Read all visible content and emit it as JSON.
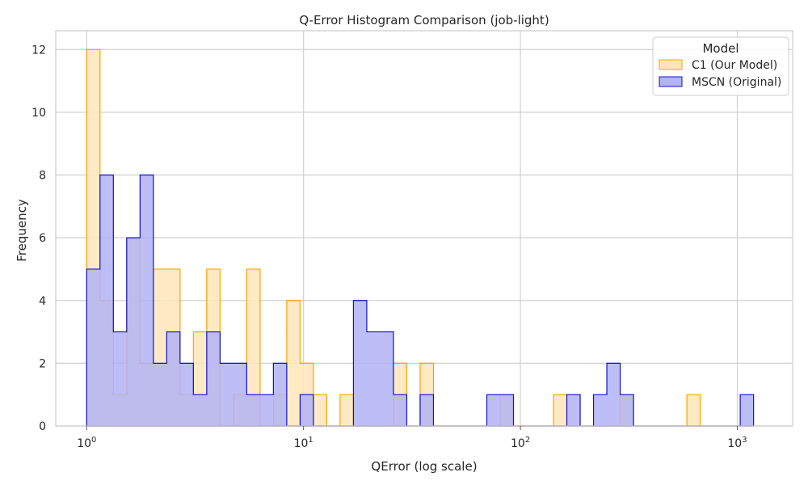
{
  "chart_data": {
    "type": "histogram",
    "title": "Q-Error Histogram Comparison (job-light)",
    "xlabel": "QError (log scale)",
    "ylabel": "Frequency",
    "x_scale": "log",
    "xlim": [
      0.72,
      1800
    ],
    "ylim": [
      0,
      12.6
    ],
    "x_ticks": [
      {
        "value": 1,
        "base": "10",
        "exp": "0"
      },
      {
        "value": 10,
        "base": "10",
        "exp": "1"
      },
      {
        "value": 100,
        "base": "10",
        "exp": "2"
      },
      {
        "value": 1000,
        "base": "10",
        "exp": "3"
      }
    ],
    "y_ticks": [
      0,
      2,
      4,
      6,
      8,
      10,
      12
    ],
    "grid": true,
    "bin_edges_log10": [
      0.0,
      0.0615,
      0.123,
      0.1845,
      0.246,
      0.3075,
      0.369,
      0.4305,
      0.492,
      0.5535,
      0.615,
      0.6765,
      0.738,
      0.7995,
      0.861,
      0.9225,
      0.984,
      1.0455,
      1.107,
      1.1685,
      1.23,
      1.2915,
      1.353,
      1.4145,
      1.476,
      1.5375,
      1.599,
      1.6605,
      1.722,
      1.7835,
      1.845,
      1.9065,
      1.968,
      2.0295,
      2.091,
      2.1525,
      2.214,
      2.2755,
      2.337,
      2.3985,
      2.46,
      2.5215,
      2.583,
      2.6445,
      2.706,
      2.7675,
      2.829,
      2.8905,
      2.952,
      3.0135,
      3.075
    ],
    "legend": {
      "title": "Model",
      "position": "top-right"
    },
    "series": [
      {
        "name": "C1 (Our Model)",
        "fill": "#ffe6b8",
        "stroke": "#ffa000",
        "values": [
          12,
          4,
          1,
          6,
          2,
          5,
          5,
          1,
          3,
          5,
          0,
          1,
          5,
          0,
          1,
          4,
          2,
          1,
          0,
          1,
          0,
          0,
          0,
          2,
          0,
          2,
          0,
          0,
          0,
          0,
          0,
          1,
          0,
          0,
          0,
          1,
          0,
          0,
          0,
          0,
          1,
          0,
          0,
          0,
          0,
          1,
          0,
          0,
          0,
          0
        ]
      },
      {
        "name": "MSCN (Original)",
        "fill": "#b3b3f5",
        "stroke": "#1010d0",
        "values": [
          5,
          8,
          3,
          6,
          8,
          2,
          3,
          2,
          1,
          3,
          2,
          2,
          1,
          1,
          2,
          0,
          1,
          0,
          0,
          0,
          4,
          3,
          3,
          1,
          0,
          1,
          0,
          0,
          0,
          0,
          1,
          1,
          0,
          0,
          0,
          0,
          1,
          0,
          1,
          2,
          1,
          0,
          0,
          0,
          0,
          0,
          0,
          0,
          0,
          1
        ]
      }
    ]
  }
}
